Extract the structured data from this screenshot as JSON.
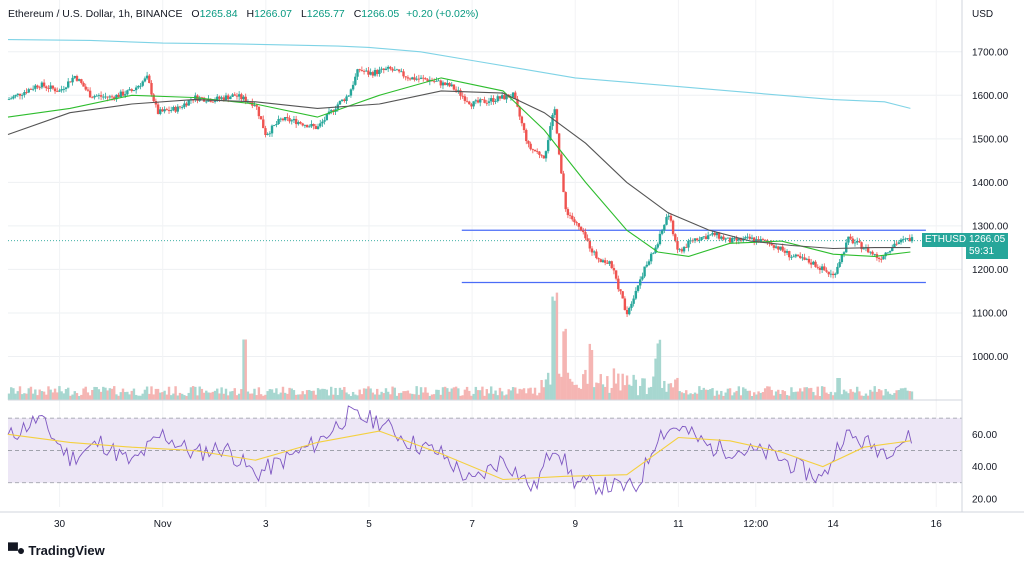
{
  "header": {
    "symbol": "Ethereum / U.S. Dollar, 1h, BINANCE",
    "o_label": "O",
    "o": "1265.84",
    "h_label": "H",
    "h": "1266.07",
    "l_label": "L",
    "l": "1265.77",
    "c_label": "C",
    "c": "1266.05",
    "change": "+0.20 (+0.02%)"
  },
  "currency": "USD",
  "price_tag": {
    "symbol": "ETHUSD",
    "price": "1266.05",
    "countdown": "59:31"
  },
  "brand": "TradingView",
  "colors": {
    "up": "#26a69a",
    "down": "#ef5350",
    "vol_up": "#a7d7d0",
    "vol_down": "#f5b5b3",
    "ma_green": "#2ebd2e",
    "ma_black": "#555555",
    "ma_cyan": "#7fd3e6",
    "level": "#4a6cf7",
    "rsi": "#7e57c2",
    "rsi_ma": "#f4d03f",
    "rsi_band": "#ede7f6"
  },
  "chart_data": {
    "type": "line",
    "title": "Ethereum / U.S. Dollar, 1h, BINANCE",
    "xlabel": "",
    "ylabel": "USD",
    "x_ticks": [
      "30",
      "Nov",
      "3",
      "5",
      "7",
      "9",
      "11",
      "12:00",
      "14",
      "16"
    ],
    "y_ticks": [
      1000,
      1100,
      1200,
      1300,
      1400,
      1500,
      1600,
      1700
    ],
    "ylim": [
      900,
      1750
    ],
    "x_unit": "days from Oct 29 00:00 (approx.)",
    "xlim": [
      0,
      18.5
    ],
    "x_tick_positions": [
      1,
      3,
      5,
      7,
      9,
      11,
      13,
      14.5,
      16,
      18
    ],
    "price_path": [
      [
        0,
        1590
      ],
      [
        0.6,
        1625
      ],
      [
        1.0,
        1610
      ],
      [
        1.3,
        1645
      ],
      [
        1.6,
        1600
      ],
      [
        2.0,
        1595
      ],
      [
        2.4,
        1610
      ],
      [
        2.7,
        1640
      ],
      [
        2.9,
        1560
      ],
      [
        3.3,
        1570
      ],
      [
        3.6,
        1595
      ],
      [
        4.0,
        1590
      ],
      [
        4.4,
        1600
      ],
      [
        4.8,
        1580
      ],
      [
        5.0,
        1510
      ],
      [
        5.3,
        1545
      ],
      [
        5.6,
        1540
      ],
      [
        6.0,
        1525
      ],
      [
        6.4,
        1580
      ],
      [
        6.6,
        1600
      ],
      [
        6.8,
        1660
      ],
      [
        7.0,
        1650
      ],
      [
        7.4,
        1660
      ],
      [
        7.8,
        1640
      ],
      [
        8.2,
        1635
      ],
      [
        8.6,
        1620
      ],
      [
        9.0,
        1580
      ],
      [
        9.4,
        1590
      ],
      [
        9.8,
        1600
      ],
      [
        10.1,
        1480
      ],
      [
        10.4,
        1460
      ],
      [
        10.6,
        1570
      ],
      [
        10.8,
        1340
      ],
      [
        11.1,
        1290
      ],
      [
        11.4,
        1230
      ],
      [
        11.7,
        1210
      ],
      [
        12.0,
        1100
      ],
      [
        12.3,
        1190
      ],
      [
        12.6,
        1260
      ],
      [
        12.8,
        1330
      ],
      [
        13.0,
        1240
      ],
      [
        13.3,
        1270
      ],
      [
        13.7,
        1280
      ],
      [
        14.0,
        1265
      ],
      [
        14.4,
        1270
      ],
      [
        14.8,
        1260
      ],
      [
        15.2,
        1230
      ],
      [
        15.6,
        1215
      ],
      [
        16.0,
        1185
      ],
      [
        16.3,
        1270
      ],
      [
        16.6,
        1250
      ],
      [
        16.9,
        1225
      ],
      [
        17.2,
        1260
      ],
      [
        17.5,
        1270
      ]
    ],
    "series": [
      {
        "name": "",
        "color": "#2ebd2e",
        "points": [
          [
            0,
            1550
          ],
          [
            1.2,
            1570
          ],
          [
            2.4,
            1600
          ],
          [
            3.6,
            1595
          ],
          [
            4.8,
            1580
          ],
          [
            6.0,
            1550
          ],
          [
            7.2,
            1600
          ],
          [
            8.4,
            1640
          ],
          [
            9.6,
            1610
          ],
          [
            10.4,
            1520
          ],
          [
            11.2,
            1400
          ],
          [
            12.0,
            1290
          ],
          [
            12.6,
            1240
          ],
          [
            13.2,
            1230
          ],
          [
            14.0,
            1260
          ],
          [
            15.0,
            1265
          ],
          [
            16.0,
            1235
          ],
          [
            16.8,
            1230
          ],
          [
            17.5,
            1240
          ]
        ]
      },
      {
        "name": "",
        "color": "#555555",
        "points": [
          [
            0,
            1510
          ],
          [
            1.2,
            1560
          ],
          [
            2.4,
            1580
          ],
          [
            3.6,
            1590
          ],
          [
            4.8,
            1585
          ],
          [
            6.0,
            1570
          ],
          [
            7.2,
            1580
          ],
          [
            8.4,
            1610
          ],
          [
            9.6,
            1605
          ],
          [
            10.4,
            1560
          ],
          [
            11.2,
            1490
          ],
          [
            12.0,
            1400
          ],
          [
            12.8,
            1330
          ],
          [
            13.6,
            1290
          ],
          [
            14.4,
            1265
          ],
          [
            15.2,
            1255
          ],
          [
            16.0,
            1248
          ],
          [
            16.8,
            1250
          ],
          [
            17.5,
            1250
          ]
        ]
      },
      {
        "name": "",
        "color": "#7fd3e6",
        "points": [
          [
            0,
            1728
          ],
          [
            1.6,
            1726
          ],
          [
            3.0,
            1720
          ],
          [
            4.4,
            1718
          ],
          [
            5.6,
            1715
          ],
          [
            6.4,
            1713
          ],
          [
            7.0,
            1710
          ],
          [
            8.0,
            1700
          ],
          [
            9.0,
            1680
          ],
          [
            10.0,
            1660
          ],
          [
            11.0,
            1640
          ],
          [
            12.0,
            1630
          ],
          [
            13.0,
            1620
          ],
          [
            14.0,
            1610
          ],
          [
            15.0,
            1600
          ],
          [
            16.0,
            1590
          ],
          [
            17.0,
            1585
          ],
          [
            17.5,
            1570
          ]
        ]
      }
    ],
    "levels": [
      {
        "price": 1290,
        "x_from": 8.8,
        "x_to": 17.8
      },
      {
        "price": 1170,
        "x_from": 8.8,
        "x_to": 17.8
      }
    ],
    "rsi": {
      "yticks": [
        20,
        40,
        60
      ],
      "band": [
        30,
        70
      ],
      "path": [
        [
          0,
          58
        ],
        [
          0.6,
          70
        ],
        [
          1.2,
          45
        ],
        [
          1.8,
          55
        ],
        [
          2.4,
          42
        ],
        [
          3.0,
          60
        ],
        [
          3.6,
          48
        ],
        [
          4.2,
          52
        ],
        [
          4.8,
          35
        ],
        [
          5.4,
          45
        ],
        [
          6.0,
          55
        ],
        [
          6.6,
          72
        ],
        [
          7.2,
          68
        ],
        [
          7.8,
          55
        ],
        [
          8.4,
          48
        ],
        [
          9.0,
          30
        ],
        [
          9.6,
          45
        ],
        [
          10.2,
          26
        ],
        [
          10.6,
          55
        ],
        [
          11.0,
          30
        ],
        [
          11.6,
          28
        ],
        [
          12.2,
          27
        ],
        [
          12.6,
          60
        ],
        [
          13.0,
          65
        ],
        [
          13.6,
          52
        ],
        [
          14.2,
          50
        ],
        [
          14.8,
          48
        ],
        [
          15.4,
          38
        ],
        [
          15.8,
          32
        ],
        [
          16.2,
          60
        ],
        [
          16.6,
          55
        ],
        [
          17.0,
          50
        ],
        [
          17.5,
          58
        ]
      ],
      "ma_path": [
        [
          0,
          60
        ],
        [
          1.2,
          55
        ],
        [
          2.4,
          52
        ],
        [
          3.6,
          50
        ],
        [
          4.8,
          44
        ],
        [
          6.0,
          55
        ],
        [
          7.2,
          62
        ],
        [
          8.4,
          48
        ],
        [
          9.6,
          32
        ],
        [
          10.8,
          34
        ],
        [
          12.0,
          35
        ],
        [
          13.0,
          58
        ],
        [
          14.0,
          56
        ],
        [
          15.0,
          49
        ],
        [
          15.8,
          40
        ],
        [
          16.6,
          52
        ],
        [
          17.5,
          56
        ]
      ]
    },
    "volume_spikes": [
      [
        10.6,
        0.8
      ],
      [
        10.8,
        0.55
      ],
      [
        11.3,
        0.45
      ],
      [
        12.6,
        0.35
      ],
      [
        4.6,
        0.55
      ],
      [
        16.1,
        0.2
      ]
    ]
  }
}
